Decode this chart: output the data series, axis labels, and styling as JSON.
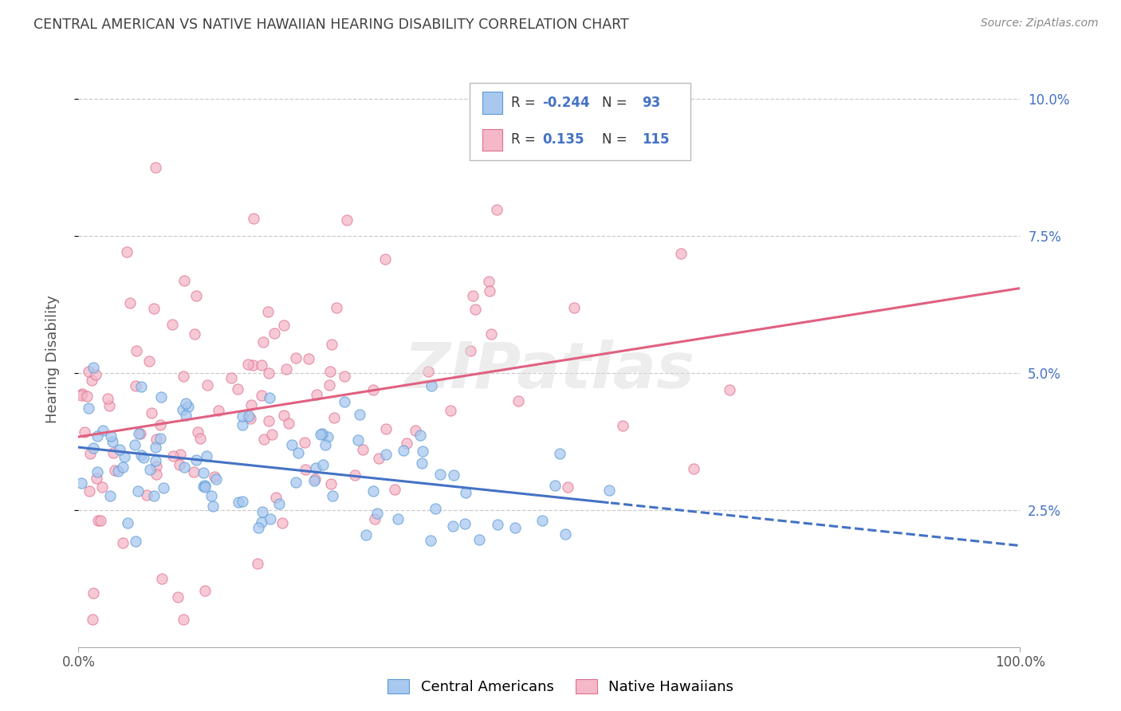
{
  "title": "CENTRAL AMERICAN VS NATIVE HAWAIIAN HEARING DISABILITY CORRELATION CHART",
  "source": "Source: ZipAtlas.com",
  "ylabel": "Hearing Disability",
  "x_min": 0.0,
  "x_max": 1.0,
  "y_min": 0.0,
  "y_max": 0.105,
  "y_tick_labels": [
    "2.5%",
    "5.0%",
    "7.5%",
    "10.0%"
  ],
  "y_tick_values": [
    0.025,
    0.05,
    0.075,
    0.1
  ],
  "legend_r_blue": "-0.244",
  "legend_n_blue": "93",
  "legend_r_pink": "0.135",
  "legend_n_pink": "115",
  "color_blue_fill": "#A8C8F0",
  "color_blue_edge": "#5B9BD5",
  "color_pink_fill": "#F4B8C8",
  "color_pink_edge": "#E07090",
  "color_blue_line": "#4472C4",
  "color_pink_line": "#E06080",
  "background_color": "#FFFFFF",
  "grid_color": "#CCCCCC",
  "title_color": "#404040",
  "source_color": "#888888",
  "axis_color": "#AAAAAA",
  "label_color": "#4472C4",
  "watermark_color": "#DDDDDD"
}
